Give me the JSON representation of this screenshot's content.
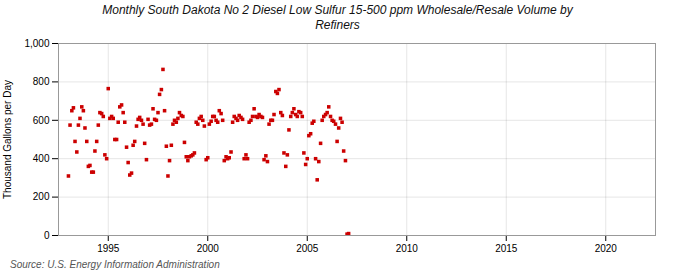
{
  "chart_data": {
    "type": "scatter",
    "title": "Monthly South Dakota No 2 Diesel Low Sulfur 15-500 ppm Wholesale/Resale Volume by\nRefiners",
    "ylabel": "Thousand Gallons per Day",
    "annotations": [
      "Source: U.S. Energy Information Administration"
    ],
    "color": "#cc0000",
    "marker": "square",
    "grid": true,
    "xlim": [
      1992.5,
      2022.5
    ],
    "ylim": [
      0,
      1000
    ],
    "xticks": [
      1995,
      2000,
      2005,
      2010,
      2015,
      2020
    ],
    "yticks": [
      0,
      200,
      400,
      600,
      800,
      {
        "value": 1000,
        "label": "1,000"
      }
    ],
    "x": [
      1993.0,
      1993.08,
      1993.17,
      1993.25,
      1993.33,
      1993.42,
      1993.5,
      1993.58,
      1993.67,
      1993.75,
      1993.83,
      1993.92,
      1994.0,
      1994.08,
      1994.17,
      1994.25,
      1994.33,
      1994.42,
      1994.5,
      1994.58,
      1994.67,
      1994.75,
      1994.83,
      1994.92,
      1995.0,
      1995.08,
      1995.17,
      1995.25,
      1995.33,
      1995.42,
      1995.5,
      1995.58,
      1995.67,
      1995.75,
      1995.83,
      1995.92,
      1996.0,
      1996.08,
      1996.17,
      1996.25,
      1996.33,
      1996.42,
      1996.5,
      1996.58,
      1996.67,
      1996.75,
      1996.83,
      1996.92,
      1997.0,
      1997.08,
      1997.17,
      1997.25,
      1997.33,
      1997.42,
      1997.5,
      1997.58,
      1997.67,
      1997.75,
      1997.83,
      1997.92,
      1998.0,
      1998.08,
      1998.17,
      1998.25,
      1998.33,
      1998.42,
      1998.5,
      1998.58,
      1998.67,
      1998.75,
      1998.83,
      1998.92,
      1999.0,
      1999.08,
      1999.17,
      1999.25,
      1999.33,
      1999.42,
      1999.5,
      1999.58,
      1999.67,
      1999.75,
      1999.83,
      1999.92,
      2000.0,
      2000.08,
      2000.17,
      2000.25,
      2000.33,
      2000.42,
      2000.5,
      2000.58,
      2000.67,
      2000.75,
      2000.83,
      2000.92,
      2001.0,
      2001.08,
      2001.17,
      2001.25,
      2001.33,
      2001.42,
      2001.5,
      2001.58,
      2001.67,
      2001.75,
      2001.83,
      2001.92,
      2002.0,
      2002.08,
      2002.17,
      2002.25,
      2002.33,
      2002.42,
      2002.5,
      2002.58,
      2002.67,
      2002.75,
      2002.83,
      2002.92,
      2003.0,
      2003.08,
      2003.17,
      2003.25,
      2003.33,
      2003.42,
      2003.5,
      2003.58,
      2003.67,
      2003.75,
      2003.83,
      2003.92,
      2004.0,
      2004.08,
      2004.17,
      2004.25,
      2004.33,
      2004.42,
      2004.5,
      2004.58,
      2004.67,
      2004.75,
      2004.83,
      2004.92,
      2005.0,
      2005.08,
      2005.17,
      2005.25,
      2005.33,
      2005.42,
      2005.5,
      2005.58,
      2005.67,
      2005.75,
      2005.83,
      2005.92,
      2006.0,
      2006.08,
      2006.17,
      2006.25,
      2006.33,
      2006.42,
      2006.5,
      2006.58,
      2006.67,
      2006.75,
      2006.83,
      2006.92,
      2007.0,
      2007.08
    ],
    "values": [
      310,
      575,
      650,
      665,
      490,
      435,
      575,
      610,
      670,
      650,
      560,
      490,
      360,
      365,
      330,
      330,
      440,
      490,
      575,
      640,
      635,
      620,
      420,
      400,
      765,
      610,
      620,
      610,
      500,
      500,
      590,
      670,
      680,
      640,
      590,
      460,
      380,
      315,
      325,
      470,
      490,
      570,
      605,
      615,
      600,
      580,
      480,
      395,
      605,
      575,
      580,
      660,
      605,
      600,
      640,
      735,
      760,
      865,
      650,
      465,
      310,
      390,
      470,
      580,
      600,
      590,
      610,
      640,
      625,
      620,
      485,
      410,
      390,
      410,
      415,
      420,
      430,
      590,
      580,
      610,
      620,
      600,
      570,
      395,
      405,
      580,
      595,
      620,
      620,
      600,
      590,
      650,
      635,
      600,
      390,
      410,
      400,
      405,
      435,
      590,
      620,
      610,
      600,
      625,
      615,
      605,
      400,
      420,
      400,
      590,
      600,
      620,
      660,
      620,
      615,
      630,
      620,
      615,
      395,
      415,
      385,
      580,
      600,
      600,
      630,
      750,
      740,
      760,
      640,
      625,
      430,
      360,
      420,
      550,
      620,
      640,
      660,
      630,
      620,
      645,
      640,
      620,
      430,
      370,
      400,
      520,
      530,
      585,
      595,
      400,
      290,
      385,
      480,
      600,
      620,
      630,
      640,
      670,
      620,
      600,
      595,
      580,
      490,
      560,
      610,
      590,
      440,
      390,
      7,
      10
    ]
  }
}
